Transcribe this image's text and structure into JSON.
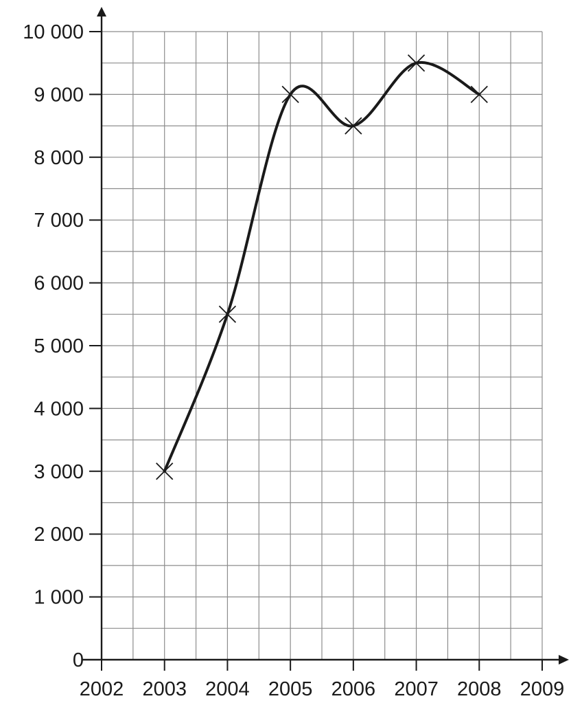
{
  "chart_data": {
    "type": "line",
    "title": "",
    "xlabel": "",
    "ylabel": "",
    "x": [
      2003,
      2004,
      2005,
      2006,
      2007,
      2008
    ],
    "series": [
      {
        "values": [
          3000,
          5500,
          9000,
          8500,
          9500,
          9000
        ],
        "color": "#1a1a1a",
        "marker": "x",
        "smooth": true
      }
    ],
    "xlim": [
      2002,
      2009
    ],
    "ylim": [
      0,
      10000
    ],
    "x_ticks": [
      2002,
      2003,
      2004,
      2005,
      2006,
      2007,
      2008,
      2009
    ],
    "x_tick_labels": [
      "2002",
      "2003",
      "2004",
      "2005",
      "2006",
      "2007",
      "2008",
      "2009"
    ],
    "y_ticks": [
      0,
      1000,
      2000,
      3000,
      4000,
      5000,
      6000,
      7000,
      8000,
      9000,
      10000
    ],
    "y_tick_labels": [
      "0",
      "1 000",
      "2 000",
      "3 000",
      "4 000",
      "5 000",
      "6 000",
      "7 000",
      "8 000",
      "9 000",
      "10 000"
    ],
    "x_minor_step": 0.5,
    "y_minor_step": 500,
    "grid": true,
    "legend": "none",
    "grid_color": "#8c8c8c",
    "axis_color": "#1a1a1a"
  }
}
